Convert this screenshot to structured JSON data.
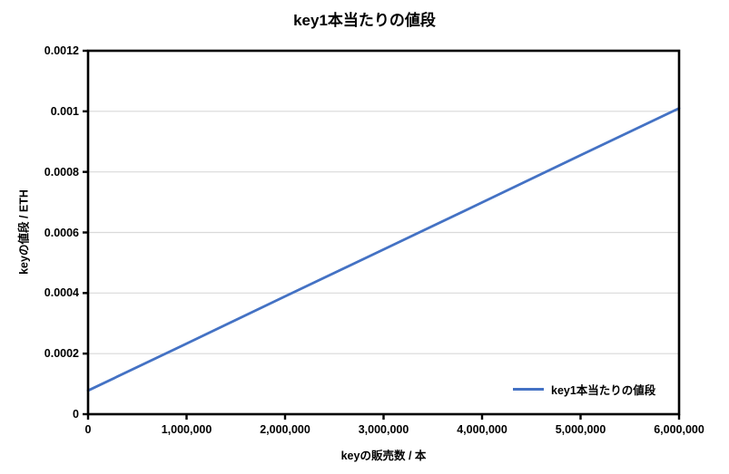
{
  "title": "key1本当たりの値段",
  "axes": {
    "x_title": "keyの販売数 / 本",
    "y_title": "keyの値段 / ETH"
  },
  "legend": {
    "label": "key1本当たりの値段"
  },
  "colors": {
    "line": "#4472C4",
    "grid": "#D9D9D9",
    "axis": "#000000",
    "text": "#000000",
    "background": "#FFFFFF"
  },
  "chart_data": {
    "type": "line",
    "title": "key1本当たりの値段",
    "xlabel": "keyの販売数 / 本",
    "ylabel": "keyの値段 / ETH",
    "series": [
      {
        "name": "key1本当たりの値段",
        "color": "#4472C4",
        "x": [
          0,
          1000000,
          2000000,
          3000000,
          4000000,
          5000000,
          6000000
        ],
        "y": [
          7.8e-05,
          0.000233,
          0.000389,
          0.000544,
          0.000699,
          0.000855,
          0.00101
        ]
      }
    ],
    "xlim": [
      0,
      6000000
    ],
    "ylim": [
      0,
      0.0012
    ],
    "x_ticks": [
      0,
      1000000,
      2000000,
      3000000,
      4000000,
      5000000,
      6000000
    ],
    "x_tick_labels": [
      "0",
      "1,000,000",
      "2,000,000",
      "3,000,000",
      "4,000,000",
      "5,000,000",
      "6,000,000"
    ],
    "y_ticks": [
      0,
      0.0002,
      0.0004,
      0.0006,
      0.0008,
      0.001,
      0.0012
    ],
    "y_tick_labels": [
      "0",
      "0.0002",
      "0.0004",
      "0.0006",
      "0.0008",
      "0.001",
      "0.0012"
    ],
    "grid": "horizontal",
    "legend_position": "inside-bottom-right"
  }
}
